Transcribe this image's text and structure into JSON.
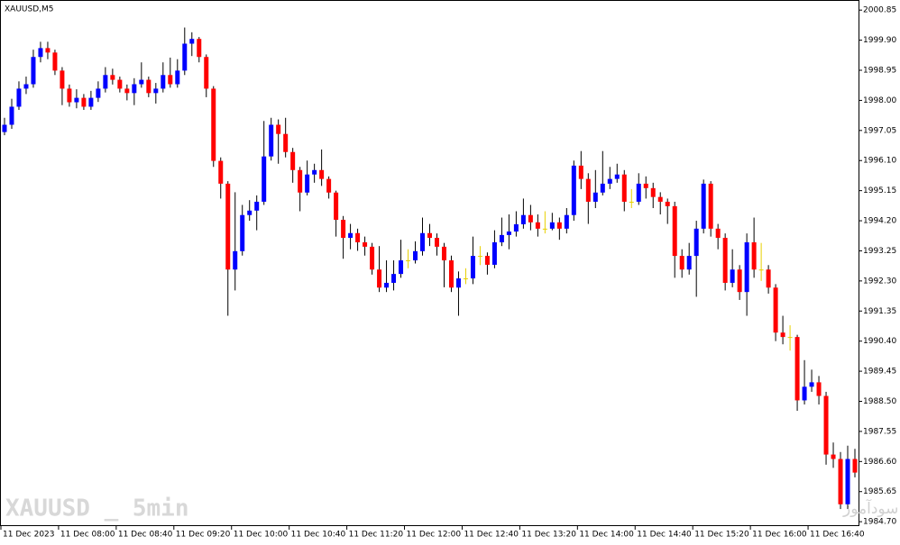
{
  "chart_data": {
    "type": "candlestick",
    "title": "XAUUSD,M5",
    "watermark": "XAUUSD _ 5min",
    "annotation": "انتشار در سایت سودآموز",
    "up_color": "#0000ff",
    "down_color": "#ff0000",
    "doji_color": "#e8d000",
    "categories": [
      "11 Dec 2023",
      null,
      null,
      null,
      null,
      null,
      null,
      null,
      "11 Dec 08:00",
      null,
      null,
      null,
      null,
      null,
      null,
      null,
      "11 Dec 08:40",
      null,
      null,
      null,
      null,
      null,
      null,
      null,
      "11 Dec 09:20",
      null,
      null,
      null,
      null,
      null,
      null,
      null,
      "11 Dec 10:00",
      null,
      null,
      null,
      null,
      null,
      null,
      null,
      "11 Dec 10:40",
      null,
      null,
      null,
      null,
      null,
      null,
      null,
      "11 Dec 11:20",
      null,
      null,
      null,
      null,
      null,
      null,
      null,
      "11 Dec 12:00",
      null,
      null,
      null,
      null,
      null,
      null,
      null,
      "11 Dec 12:40",
      null,
      null,
      null,
      null,
      null,
      null,
      null,
      "11 Dec 13:20",
      null,
      null,
      null,
      null,
      null,
      null,
      null,
      "11 Dec 14:00",
      null,
      null,
      null,
      null,
      null,
      null,
      null,
      "11 Dec 14:40",
      null,
      null,
      null,
      null,
      null,
      null,
      null,
      "11 Dec 15:20",
      null,
      null,
      null,
      null,
      null,
      null,
      null,
      "11 Dec 16:00",
      null,
      null,
      null,
      null,
      null,
      null,
      null,
      "11 Dec 16:40",
      null,
      null,
      null,
      null,
      null,
      null
    ],
    "open": [
      1997.0,
      1997.23,
      1997.8,
      1998.37,
      1998.51,
      1999.37,
      1999.65,
      1999.51,
      1998.94,
      1998.37,
      1997.94,
      1998.08,
      1997.8,
      1998.08,
      1998.37,
      1998.8,
      1998.65,
      1998.37,
      1998.23,
      1998.51,
      1998.65,
      1998.23,
      1998.37,
      1998.8,
      1998.51,
      1998.94,
      1999.79,
      1999.94,
      1999.37,
      1998.37,
      1996.09,
      1995.37,
      1992.66,
      1993.24,
      1994.38,
      1994.52,
      1994.8,
      1996.23,
      1997.23,
      1996.94,
      1996.37,
      1995.8,
      1995.09,
      1995.66,
      1995.8,
      1995.52,
      1995.09,
      1994.23,
      1993.66,
      1993.81,
      1993.52,
      1993.38,
      1992.66,
      1992.09,
      1992.24,
      1992.52,
      1992.95,
      1992.95,
      1993.24,
      1993.81,
      1993.66,
      1993.38,
      1992.95,
      1992.09,
      1992.38,
      1992.38,
      1993.09,
      1993.09,
      1992.81,
      1993.52,
      1993.75,
      1993.86,
      1994.09,
      1994.38,
      1994.15,
      1993.95,
      1993.95,
      1994.15,
      1993.95,
      1994.38,
      1995.94,
      1995.52,
      1994.8,
      1995.09,
      1995.37,
      1995.52,
      1995.66,
      1994.8,
      1994.8,
      1995.37,
      1995.23,
      1994.95,
      1994.8,
      1994.66,
      1993.09,
      1992.66,
      1993.09,
      1993.95,
      1995.37,
      1993.95,
      1993.66,
      1992.24,
      1992.66,
      1991.95,
      1993.52,
      1992.66,
      1992.66,
      1992.09,
      1990.67,
      1990.53,
      1990.53,
      1988.53,
      1988.96,
      1989.1,
      1988.67,
      1986.82,
      1986.68,
      1985.25,
      1986.68
    ],
    "high": [
      1997.45,
      1998.05,
      1998.6,
      1998.75,
      1999.6,
      1999.85,
      1999.85,
      1999.6,
      1999.05,
      1998.5,
      1998.35,
      1998.2,
      1998.3,
      1998.6,
      1999.05,
      1999.0,
      1998.75,
      1998.5,
      1998.7,
      1999.2,
      1998.75,
      1998.55,
      1999.2,
      1999.35,
      1999.3,
      2000.3,
      2000.15,
      2000.0,
      1999.45,
      1998.45,
      1996.2,
      1995.45,
      1995.1,
      1994.7,
      1994.85,
      1995.0,
      1997.35,
      1997.45,
      1997.4,
      1997.45,
      1996.5,
      1995.9,
      1996.1,
      1996.0,
      1996.45,
      1995.6,
      1995.15,
      1994.35,
      1994.1,
      1993.95,
      1993.7,
      1993.5,
      1993.4,
      1992.95,
      1992.95,
      1993.6,
      1993.3,
      1993.55,
      1994.3,
      1994.1,
      1993.8,
      1993.5,
      1993.1,
      1992.6,
      1992.7,
      1993.7,
      1993.4,
      1993.2,
      1993.9,
      1994.3,
      1994.4,
      1994.5,
      1994.9,
      1994.7,
      1994.4,
      1994.5,
      1994.45,
      1994.3,
      1994.6,
      1996.1,
      1996.4,
      1995.7,
      1995.8,
      1996.4,
      1995.9,
      1996.0,
      1995.8,
      1995.2,
      1995.7,
      1995.6,
      1995.4,
      1995.1,
      1994.9,
      1994.8,
      1993.3,
      1993.5,
      1994.2,
      1995.5,
      1995.45,
      1994.1,
      1993.8,
      1993.3,
      1992.8,
      1993.8,
      1994.3,
      1993.5,
      1992.8,
      1992.2,
      1991.2,
      1990.9,
      1990.6,
      1989.8,
      1989.5,
      1989.3,
      1988.8,
      1987.2,
      1986.9,
      1987.1,
      1987.0
    ],
    "low": [
      1996.9,
      1997.1,
      1997.7,
      1998.2,
      1998.4,
      1999.2,
      1999.3,
      1998.8,
      1997.85,
      1997.8,
      1997.75,
      1997.7,
      1997.7,
      1997.95,
      1998.25,
      1998.5,
      1998.25,
      1998.0,
      1997.85,
      1998.4,
      1998.1,
      1997.9,
      1998.25,
      1998.4,
      1998.4,
      1998.8,
      1999.4,
      1999.2,
      1998.1,
      1995.9,
      1994.9,
      1991.2,
      1992.0,
      1993.1,
      1994.2,
      1993.9,
      1994.7,
      1996.1,
      1996.0,
      1996.2,
      1995.4,
      1994.5,
      1995.0,
      1995.4,
      1995.3,
      1994.9,
      1993.7,
      1993.0,
      1993.3,
      1993.25,
      1993.1,
      1992.5,
      1991.95,
      1991.95,
      1992.0,
      1992.4,
      1992.7,
      1992.85,
      1993.1,
      1993.4,
      1993.1,
      1992.1,
      1991.95,
      1991.2,
      1992.2,
      1992.2,
      1992.8,
      1992.5,
      1992.7,
      1993.4,
      1993.3,
      1993.7,
      1993.95,
      1993.9,
      1993.7,
      1993.8,
      1993.9,
      1993.6,
      1993.8,
      1994.2,
      1995.2,
      1994.1,
      1994.6,
      1995.0,
      1995.2,
      1995.4,
      1994.5,
      1994.6,
      1994.7,
      1994.9,
      1994.6,
      1994.4,
      1994.1,
      1992.4,
      1992.4,
      1992.5,
      1991.8,
      1993.8,
      1993.7,
      1993.3,
      1992.0,
      1992.1,
      1991.7,
      1991.2,
      1992.4,
      1992.3,
      1991.9,
      1990.4,
      1990.3,
      1990.1,
      1988.2,
      1988.4,
      1988.8,
      1988.4,
      1986.5,
      1986.4,
      1985.1,
      1985.1,
      1986.1
    ],
    "close": [
      1997.23,
      1997.8,
      1998.37,
      1998.51,
      1999.37,
      1999.65,
      1999.51,
      1998.94,
      1998.37,
      1997.94,
      1998.08,
      1997.8,
      1998.08,
      1998.37,
      1998.8,
      1998.65,
      1998.37,
      1998.23,
      1998.51,
      1998.65,
      1998.23,
      1998.37,
      1998.8,
      1998.51,
      1998.94,
      1999.79,
      1999.94,
      1999.37,
      1998.37,
      1996.09,
      1995.37,
      1992.66,
      1993.24,
      1994.38,
      1994.52,
      1994.8,
      1996.23,
      1997.23,
      1996.94,
      1996.37,
      1995.8,
      1995.09,
      1995.66,
      1995.8,
      1995.52,
      1995.09,
      1994.23,
      1993.66,
      1993.81,
      1993.52,
      1993.38,
      1992.66,
      1992.09,
      1992.24,
      1992.52,
      1992.95,
      1992.95,
      1993.24,
      1993.81,
      1993.66,
      1993.38,
      1992.95,
      1992.09,
      1992.38,
      1992.38,
      1993.09,
      1993.09,
      1992.81,
      1993.52,
      1993.75,
      1993.86,
      1994.09,
      1994.38,
      1994.15,
      1993.95,
      1993.95,
      1994.15,
      1993.95,
      1994.38,
      1995.94,
      1995.52,
      1994.8,
      1995.09,
      1995.37,
      1995.52,
      1995.66,
      1994.8,
      1994.8,
      1995.37,
      1995.23,
      1994.95,
      1994.8,
      1994.66,
      1993.09,
      1992.66,
      1993.09,
      1993.95,
      1995.37,
      1993.95,
      1993.66,
      1992.24,
      1992.66,
      1991.95,
      1993.52,
      1992.66,
      1992.66,
      1992.09,
      1990.67,
      1990.53,
      1990.53,
      1988.53,
      1988.96,
      1989.1,
      1988.67,
      1986.82,
      1986.68,
      1985.25,
      1986.68,
      1986.25
    ],
    "ylim": [
      1984.59,
      2001.14
    ],
    "yticks": [
      2000.85,
      {
        "value": 1999.9,
        "label": "1999.90"
      },
      1998.95,
      {
        "value": 1998,
        "label": "1998.00"
      },
      1997.05,
      {
        "value": 1996.1,
        "label": "1996.10"
      },
      1995.15,
      {
        "value": 1994.2,
        "label": "1994.20"
      },
      1993.25,
      {
        "value": 1992.3,
        "label": "1992.30"
      },
      1991.35,
      {
        "value": 1990.4,
        "label": "1990.40"
      },
      1989.45,
      {
        "value": 1988.5,
        "label": "1988.50"
      },
      1987.55,
      {
        "value": 1986.6,
        "label": "1986.60"
      },
      1985.65,
      {
        "value": 1984.7,
        "label": "1984.70"
      }
    ]
  }
}
